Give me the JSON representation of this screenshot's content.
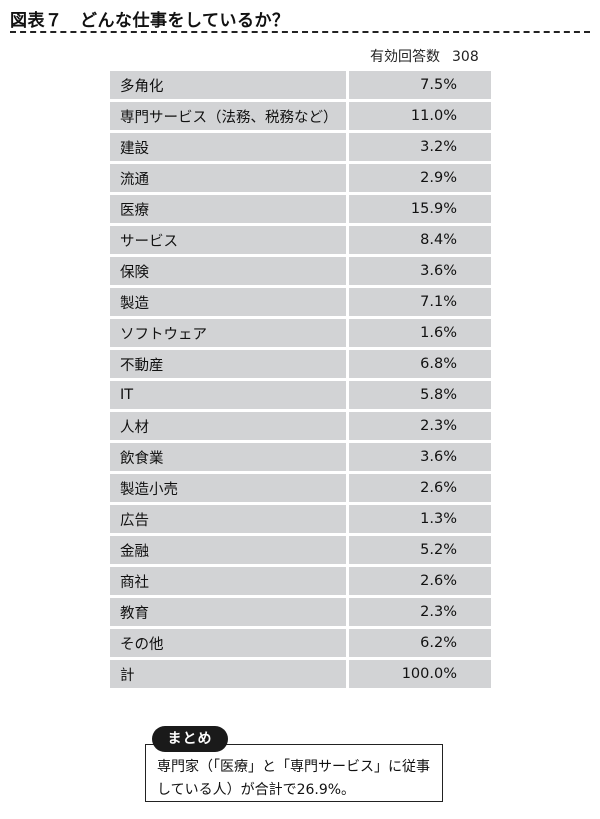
{
  "figure": {
    "title": "図表７　どんな仕事をしているか？"
  },
  "respondents": {
    "label": "有効回答数",
    "count": "308"
  },
  "rows": [
    {
      "label": "多角化",
      "value": "7.5%"
    },
    {
      "label": "専門サービス（法務、税務など）",
      "value": "11.0%"
    },
    {
      "label": "建設",
      "value": "3.2%"
    },
    {
      "label": "流通",
      "value": "2.9%"
    },
    {
      "label": "医療",
      "value": "15.9%"
    },
    {
      "label": "サービス",
      "value": "8.4%"
    },
    {
      "label": "保険",
      "value": "3.6%"
    },
    {
      "label": "製造",
      "value": "7.1%"
    },
    {
      "label": "ソフトウェア",
      "value": "1.6%"
    },
    {
      "label": "不動産",
      "value": "6.8%"
    },
    {
      "label": "IT",
      "value": "5.8%"
    },
    {
      "label": "人材",
      "value": "2.3%"
    },
    {
      "label": "飲食業",
      "value": "3.6%"
    },
    {
      "label": "製造小売",
      "value": "2.6%"
    },
    {
      "label": "広告",
      "value": "1.3%"
    },
    {
      "label": "金融",
      "value": "5.2%"
    },
    {
      "label": "商社",
      "value": "2.6%"
    },
    {
      "label": "教育",
      "value": "2.3%"
    },
    {
      "label": "その他",
      "value": "6.2%"
    },
    {
      "label": "計",
      "value": "100.0%"
    }
  ],
  "summary": {
    "tag": "まとめ",
    "line1": "専門家（「医療」と「専門サービス」に従事",
    "line2": "している人）が合計で26.9%。"
  },
  "colors": {
    "cell_background": "#d2d3d5",
    "tag_background": "#1a1a1a"
  }
}
